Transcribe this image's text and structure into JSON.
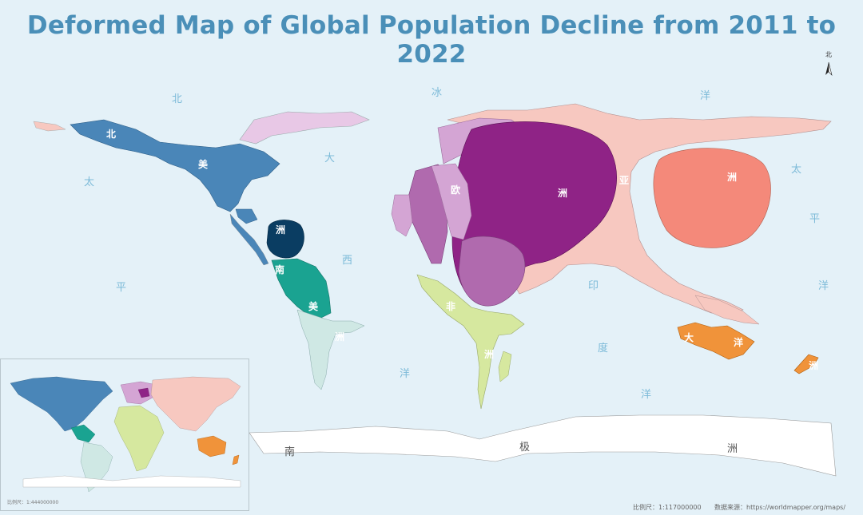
{
  "title": "Deformed Map of Global Population Decline from 2011 to 2022",
  "north_arrow": {
    "label": "北"
  },
  "ocean_labels": {
    "pacific_west": [
      "北",
      "太",
      "平"
    ],
    "arctic": "冰",
    "atlantic": [
      "大",
      "西",
      "洋"
    ],
    "pacific_east": [
      "洋",
      "太",
      "平",
      "洋"
    ],
    "indian": [
      "印",
      "度",
      "洋"
    ]
  },
  "continent_labels": {
    "north_america": [
      "北",
      "美",
      "洲"
    ],
    "south_america": [
      "南",
      "美",
      "洲"
    ],
    "europe": "欧",
    "asia": [
      "洲",
      "亚",
      "洲"
    ],
    "africa": [
      "非",
      "洲"
    ],
    "oceania": [
      "大",
      "洋",
      "洲"
    ],
    "antarctica": [
      "南",
      "极",
      "洲"
    ]
  },
  "colors": {
    "ocean": "#e4f1f8",
    "north_america": "#4a86b8",
    "central_america": "#0a3d62",
    "south_america": "#1aa391",
    "south_america_south": "#cfe8e4",
    "europe_dark": "#8f2386",
    "europe_mid": "#b06aae",
    "europe_light": "#d4a5d4",
    "asia": "#f7c8c0",
    "east_asia": "#f4897a",
    "africa": "#d6e89f",
    "oceania": "#f0933a",
    "antarctica": "#ffffff"
  },
  "inset": {
    "scale_text": "比例尺：1:444000000"
  },
  "footer": {
    "scale_text": "比例尺：1:117000000",
    "source_text": "数据来源：https://worldmapper.org/maps/"
  }
}
